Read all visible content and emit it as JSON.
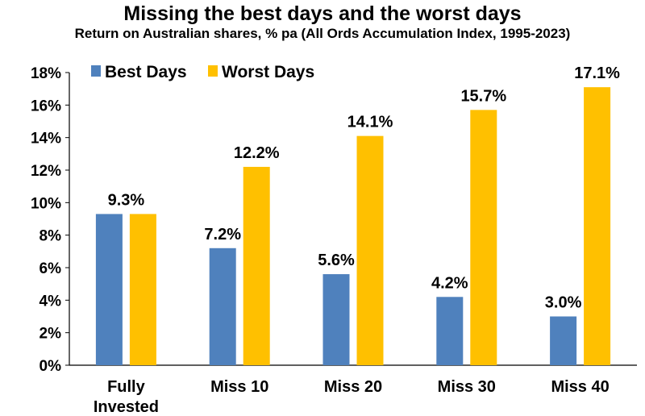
{
  "chart_data": {
    "type": "bar",
    "title": "Missing the best days and the worst days",
    "subtitle": "Return on Australian shares, % pa (All Ords Accumulation Index, 1995-2023)",
    "categories": [
      [
        "Fully",
        "Invested"
      ],
      [
        "Miss 10"
      ],
      [
        "Miss 20"
      ],
      [
        "Miss 30"
      ],
      [
        "Miss 40"
      ]
    ],
    "series": [
      {
        "name": "Best Days",
        "color": "#4F81BD",
        "values": [
          9.3,
          7.2,
          5.6,
          4.2,
          3.0
        ],
        "labels": [
          "9.3%",
          "7.2%",
          "5.6%",
          "4.2%",
          "3.0%"
        ]
      },
      {
        "name": "Worst Days",
        "color": "#FFC000",
        "values": [
          9.3,
          12.2,
          14.1,
          15.7,
          17.1
        ],
        "labels": [
          "",
          "12.2%",
          "14.1%",
          "15.7%",
          "17.1%"
        ]
      }
    ],
    "ylim": [
      0,
      18
    ],
    "yticks": [
      "0%",
      "2%",
      "4%",
      "6%",
      "8%",
      "10%",
      "12%",
      "14%",
      "16%",
      "18%"
    ],
    "legend": "top-left",
    "grid": false
  }
}
